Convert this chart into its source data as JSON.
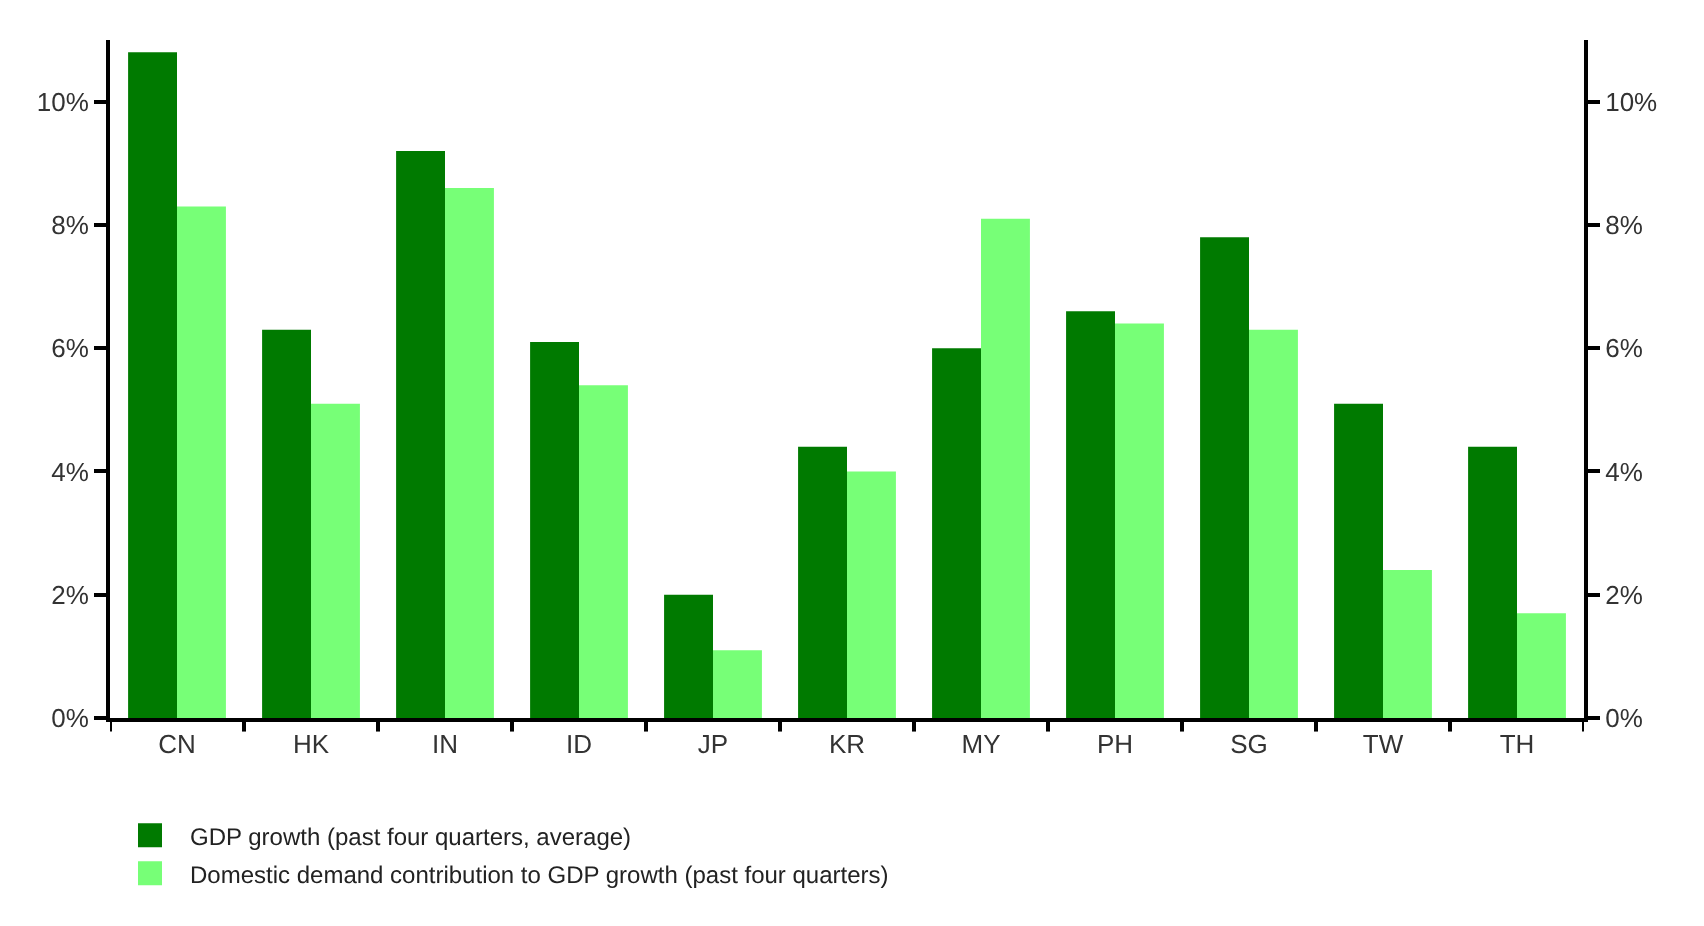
{
  "chart_data": {
    "type": "bar",
    "categories": [
      "CN",
      "HK",
      "IN",
      "ID",
      "JP",
      "KR",
      "MY",
      "PH",
      "SG",
      "TW",
      "TH"
    ],
    "series": [
      {
        "name": "GDP growth (past four quarters, average)",
        "color": "#007a00",
        "values": [
          10.8,
          6.3,
          9.2,
          6.1,
          2.0,
          4.4,
          6.0,
          6.6,
          7.8,
          5.1,
          4.4
        ]
      },
      {
        "name": "Domestic demand contribution to GDP growth (past four quarters)",
        "color": "#77ff77",
        "values": [
          8.3,
          5.1,
          8.6,
          5.4,
          1.1,
          4.0,
          8.1,
          6.4,
          6.3,
          2.4,
          1.7
        ]
      }
    ],
    "ylim": [
      0,
      11
    ],
    "yticks": [
      {
        "value": 0,
        "label": "0%"
      },
      {
        "value": 2,
        "label": "2%"
      },
      {
        "value": 4,
        "label": "4%"
      },
      {
        "value": 6,
        "label": "6%"
      },
      {
        "value": 8,
        "label": "8%"
      },
      {
        "value": 10,
        "label": "10%"
      }
    ],
    "y2lim": [
      0,
      11
    ],
    "y2ticks": [
      {
        "value": 0,
        "label": "0%"
      },
      {
        "value": 2,
        "label": "2%"
      },
      {
        "value": 4,
        "label": "4%"
      },
      {
        "value": 6,
        "label": "6%"
      },
      {
        "value": 8,
        "label": "8%"
      },
      {
        "value": 10,
        "label": "10%"
      }
    ],
    "legend": "bottom"
  }
}
